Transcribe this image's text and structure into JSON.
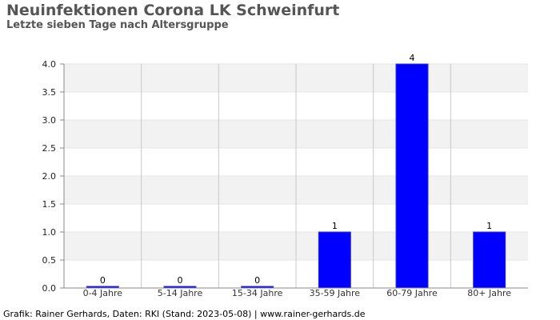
{
  "chart_data": {
    "type": "bar",
    "title": "Neuinfektionen Corona LK Schweinfurt",
    "subtitle": "Letzte sieben Tage nach Altersgruppe",
    "categories": [
      "0-4 Jahre",
      "5-14 Jahre",
      "15-34 Jahre",
      "35-59 Jahre",
      "60-79 Jahre",
      "80+ Jahre"
    ],
    "values": [
      0,
      0,
      0,
      1,
      4,
      1
    ],
    "data_labels": [
      "0",
      "0",
      "0",
      "1",
      "4",
      "1"
    ],
    "ylim": [
      0,
      4
    ],
    "y_ticks": [
      "0.0",
      "0.5",
      "1.0",
      "1.5",
      "2.0",
      "2.5",
      "3.0",
      "3.5",
      "4.0"
    ],
    "xlabel": "",
    "ylabel": "",
    "grid": true,
    "bar_color": "#0000ff",
    "band_color": "#f2f2f2",
    "grid_color": "#c8c8c8"
  },
  "footer": "Grafik: Rainer Gerhards, Daten: RKI (Stand: 2023-05-08) | www.rainer-gerhards.de"
}
